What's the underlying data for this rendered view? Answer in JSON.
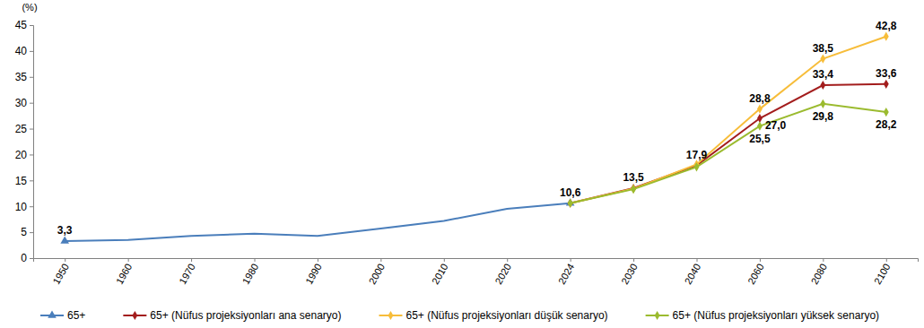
{
  "chart_data": {
    "type": "line",
    "y_label": "(%)",
    "categories": [
      "1950",
      "1960",
      "1970",
      "1980",
      "1990",
      "2000",
      "2010",
      "2020",
      "2024",
      "2030",
      "2040",
      "2060",
      "2080",
      "2100"
    ],
    "ylim": [
      0,
      45
    ],
    "yticks": [
      0,
      5,
      10,
      15,
      20,
      25,
      30,
      35,
      40,
      45
    ],
    "grid": false,
    "legend": "bottom",
    "series": [
      {
        "name": "65+",
        "color": "#4a7ebb",
        "marker": "triangle",
        "data_labels": true,
        "values": [
          3.3,
          3.5,
          4.3,
          4.7,
          4.3,
          5.7,
          7.2,
          9.5,
          10.6,
          null,
          null,
          null,
          null,
          null
        ],
        "value_labels": [
          "3,3",
          null,
          null,
          null,
          null,
          null,
          null,
          null,
          "10,6",
          null,
          null,
          null,
          null,
          null
        ]
      },
      {
        "name": "65+ (Nüfus projeksiyonları ana senaryo)",
        "color": "#a31d1d",
        "marker": "diamond",
        "data_labels": true,
        "values": [
          null,
          null,
          null,
          null,
          null,
          null,
          null,
          null,
          10.6,
          13.5,
          17.9,
          27.0,
          33.4,
          33.6
        ],
        "value_labels": [
          null,
          null,
          null,
          null,
          null,
          null,
          null,
          null,
          null,
          "13,5",
          "17,9",
          "27,0",
          "33,4",
          "33,6"
        ]
      },
      {
        "name": "65+ (Nüfus projeksiyonları düşük senaryo)",
        "color": "#f7bd3a",
        "marker": "diamond",
        "data_labels": true,
        "values": [
          null,
          null,
          null,
          null,
          null,
          null,
          null,
          null,
          10.6,
          13.4,
          18.1,
          28.8,
          38.5,
          42.8
        ],
        "value_labels": [
          null,
          null,
          null,
          null,
          null,
          null,
          null,
          null,
          null,
          null,
          null,
          "28,8",
          "38,5",
          "42,8"
        ]
      },
      {
        "name": "65+ (Nüfus projeksiyonları yüksek senaryo)",
        "color": "#9bbb2f",
        "marker": "diamond",
        "data_labels": true,
        "values": [
          null,
          null,
          null,
          null,
          null,
          null,
          null,
          null,
          10.6,
          13.3,
          17.6,
          25.5,
          29.8,
          28.2
        ],
        "value_labels": [
          null,
          null,
          null,
          null,
          null,
          null,
          null,
          null,
          null,
          null,
          null,
          "25,5",
          "29,8",
          "28,2"
        ]
      }
    ]
  }
}
